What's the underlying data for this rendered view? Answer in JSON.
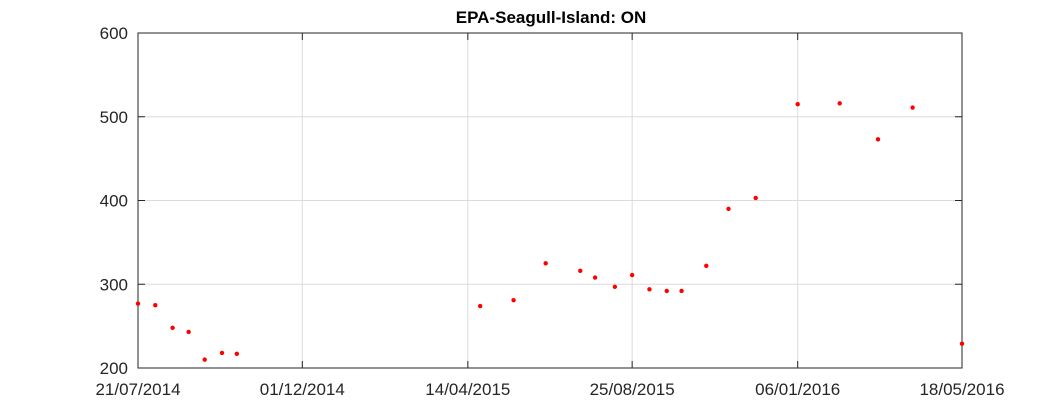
{
  "chart_data": {
    "type": "scatter",
    "title": "EPA-Seagull-Island: ON",
    "xlabel": "",
    "ylabel": "",
    "x_type": "date",
    "xlim": [
      "2014-07-21",
      "2016-05-18"
    ],
    "ylim": [
      200,
      600
    ],
    "x_ticks": [
      "2014-07-21",
      "2014-12-01",
      "2015-04-14",
      "2015-08-25",
      "2016-01-06",
      "2016-05-18"
    ],
    "x_tick_labels": [
      "21/07/2014",
      "01/12/2014",
      "14/04/2015",
      "25/08/2015",
      "06/01/2016",
      "18/05/2016"
    ],
    "y_ticks": [
      200,
      300,
      400,
      500,
      600
    ],
    "y_tick_labels": [
      "200",
      "300",
      "400",
      "500",
      "600"
    ],
    "grid": true,
    "marker_color": "#ff0000",
    "series": [
      {
        "points": [
          {
            "x": "2014-07-21",
            "y": 277
          },
          {
            "x": "2014-08-04",
            "y": 275
          },
          {
            "x": "2014-08-18",
            "y": 248
          },
          {
            "x": "2014-08-31",
            "y": 243
          },
          {
            "x": "2014-09-13",
            "y": 210
          },
          {
            "x": "2014-09-27",
            "y": 218
          },
          {
            "x": "2014-10-09",
            "y": 217
          },
          {
            "x": "2015-04-24",
            "y": 274
          },
          {
            "x": "2015-05-21",
            "y": 281
          },
          {
            "x": "2015-06-16",
            "y": 325
          },
          {
            "x": "2015-07-14",
            "y": 316
          },
          {
            "x": "2015-07-26",
            "y": 308
          },
          {
            "x": "2015-08-11",
            "y": 297
          },
          {
            "x": "2015-08-25",
            "y": 311
          },
          {
            "x": "2015-09-08",
            "y": 294
          },
          {
            "x": "2015-09-22",
            "y": 292
          },
          {
            "x": "2015-10-04",
            "y": 292
          },
          {
            "x": "2015-10-24",
            "y": 322
          },
          {
            "x": "2015-11-11",
            "y": 390
          },
          {
            "x": "2015-12-03",
            "y": 403
          },
          {
            "x": "2016-01-06",
            "y": 515
          },
          {
            "x": "2016-02-09",
            "y": 516
          },
          {
            "x": "2016-03-11",
            "y": 473
          },
          {
            "x": "2016-04-08",
            "y": 511
          },
          {
            "x": "2016-05-18",
            "y": 229
          }
        ]
      }
    ]
  }
}
